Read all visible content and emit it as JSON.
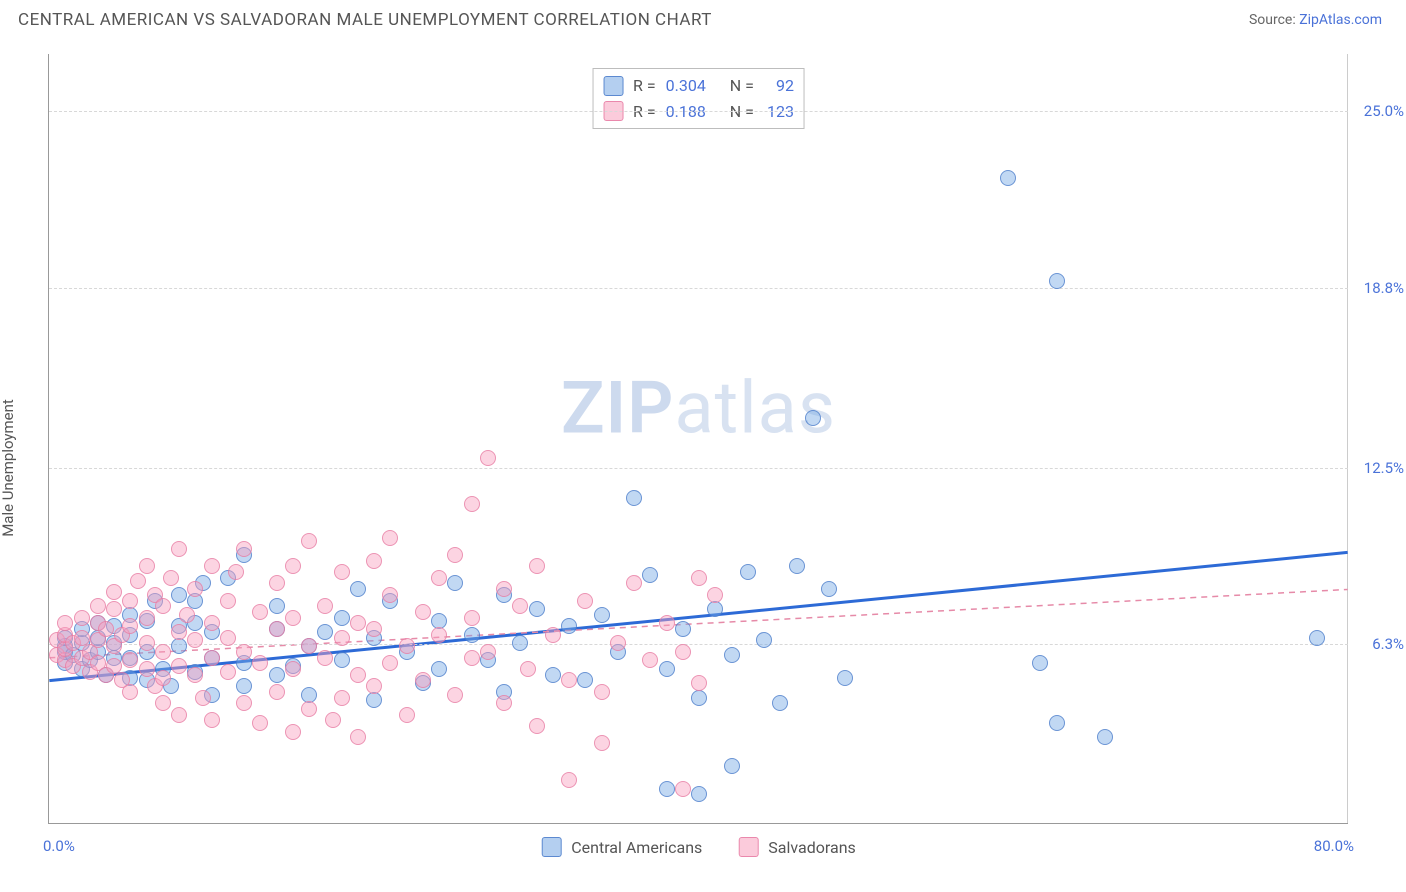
{
  "header": {
    "title": "CENTRAL AMERICAN VS SALVADORAN MALE UNEMPLOYMENT CORRELATION CHART",
    "source_prefix": "Source: ",
    "source_link": "ZipAtlas.com"
  },
  "chart": {
    "type": "scatter",
    "ylabel": "Male Unemployment",
    "watermark_left": "ZIP",
    "watermark_right": "atlas",
    "background_color": "#ffffff",
    "grid_color": "#d8d8d8",
    "axis_color": "#999999",
    "tick_label_color": "#4a72d8",
    "xlim": [
      0,
      80
    ],
    "ylim": [
      0,
      27
    ],
    "yticks": [
      {
        "v": 6.3,
        "label": "6.3%"
      },
      {
        "v": 12.5,
        "label": "12.5%"
      },
      {
        "v": 18.8,
        "label": "18.8%"
      },
      {
        "v": 25.0,
        "label": "25.0%"
      }
    ],
    "xticks": {
      "min_label": "0.0%",
      "max_label": "80.0%"
    },
    "series": [
      {
        "key": "central_americans",
        "label": "Central Americans",
        "color_fill": "rgba(118,168,228,0.45)",
        "color_stroke": "rgba(70,120,200,0.7)",
        "marker_size": 16,
        "trend": {
          "y_at_x0": 5.0,
          "y_at_xmax": 9.5,
          "dashed": false,
          "stroke": "#2d6ad6",
          "width": 3
        },
        "stats": {
          "R": "0.304",
          "N": "92"
        },
        "points": [
          [
            1,
            5.6
          ],
          [
            1,
            6.0
          ],
          [
            1,
            6.2
          ],
          [
            1,
            6.5
          ],
          [
            1.5,
            5.9
          ],
          [
            2,
            5.4
          ],
          [
            2,
            6.3
          ],
          [
            2,
            6.8
          ],
          [
            2.5,
            5.7
          ],
          [
            3,
            6.0
          ],
          [
            3,
            6.5
          ],
          [
            3,
            7.0
          ],
          [
            3.5,
            5.2
          ],
          [
            4,
            5.8
          ],
          [
            4,
            6.3
          ],
          [
            4,
            6.9
          ],
          [
            5,
            5.1
          ],
          [
            5,
            5.8
          ],
          [
            5,
            6.6
          ],
          [
            5,
            7.3
          ],
          [
            6,
            5.0
          ],
          [
            6,
            6.0
          ],
          [
            6,
            7.1
          ],
          [
            6.5,
            7.8
          ],
          [
            7,
            5.4
          ],
          [
            7.5,
            4.8
          ],
          [
            8,
            6.2
          ],
          [
            8,
            6.9
          ],
          [
            8,
            8.0
          ],
          [
            9,
            5.3
          ],
          [
            9,
            7.0
          ],
          [
            9,
            7.8
          ],
          [
            9.5,
            8.4
          ],
          [
            10,
            4.5
          ],
          [
            10,
            5.8
          ],
          [
            10,
            6.7
          ],
          [
            11,
            8.6
          ],
          [
            12,
            9.4
          ],
          [
            12,
            5.6
          ],
          [
            12,
            4.8
          ],
          [
            14,
            6.8
          ],
          [
            14,
            5.2
          ],
          [
            14,
            7.6
          ],
          [
            15,
            5.5
          ],
          [
            16,
            4.5
          ],
          [
            16,
            6.2
          ],
          [
            17,
            6.7
          ],
          [
            18,
            5.7
          ],
          [
            18,
            7.2
          ],
          [
            19,
            8.2
          ],
          [
            20,
            6.5
          ],
          [
            20,
            4.3
          ],
          [
            21,
            7.8
          ],
          [
            22,
            6.0
          ],
          [
            23,
            4.9
          ],
          [
            24,
            7.1
          ],
          [
            24,
            5.4
          ],
          [
            25,
            8.4
          ],
          [
            26,
            6.6
          ],
          [
            27,
            5.7
          ],
          [
            28,
            8.0
          ],
          [
            28,
            4.6
          ],
          [
            29,
            6.3
          ],
          [
            30,
            7.5
          ],
          [
            31,
            5.2
          ],
          [
            32,
            6.9
          ],
          [
            33,
            5.0
          ],
          [
            34,
            7.3
          ],
          [
            35,
            6.0
          ],
          [
            36,
            11.4
          ],
          [
            37,
            8.7
          ],
          [
            38,
            5.4
          ],
          [
            38,
            1.2
          ],
          [
            39,
            6.8
          ],
          [
            40,
            4.4
          ],
          [
            40,
            1.0
          ],
          [
            41,
            7.5
          ],
          [
            42,
            5.9
          ],
          [
            42,
            2.0
          ],
          [
            43,
            8.8
          ],
          [
            44,
            6.4
          ],
          [
            45,
            4.2
          ],
          [
            46,
            9.0
          ],
          [
            47,
            14.2
          ],
          [
            48,
            8.2
          ],
          [
            49,
            5.1
          ],
          [
            59,
            22.6
          ],
          [
            62,
            19.0
          ],
          [
            62,
            3.5
          ],
          [
            61,
            5.6
          ],
          [
            65,
            3.0
          ],
          [
            78,
            6.5
          ]
        ]
      },
      {
        "key": "salvadorans",
        "label": "Salvadorans",
        "color_fill": "rgba(248,160,190,0.45)",
        "color_stroke": "rgba(230,120,160,0.7)",
        "marker_size": 16,
        "trend": {
          "y_at_x0": 5.8,
          "y_at_xmax": 8.2,
          "dashed": true,
          "stroke": "#e68aa8",
          "width": 1.5
        },
        "stats": {
          "R": "0.188",
          "N": "123"
        },
        "points": [
          [
            0.5,
            5.9
          ],
          [
            0.5,
            6.4
          ],
          [
            1,
            5.7
          ],
          [
            1,
            6.1
          ],
          [
            1,
            6.6
          ],
          [
            1,
            7.0
          ],
          [
            1.5,
            5.5
          ],
          [
            1.5,
            6.3
          ],
          [
            2,
            5.8
          ],
          [
            2,
            6.5
          ],
          [
            2,
            7.2
          ],
          [
            2.5,
            5.3
          ],
          [
            2.5,
            6.0
          ],
          [
            3,
            5.6
          ],
          [
            3,
            6.4
          ],
          [
            3,
            7.0
          ],
          [
            3,
            7.6
          ],
          [
            3.5,
            5.2
          ],
          [
            3.5,
            6.8
          ],
          [
            4,
            5.5
          ],
          [
            4,
            6.2
          ],
          [
            4,
            7.5
          ],
          [
            4,
            8.1
          ],
          [
            4.5,
            5.0
          ],
          [
            4.5,
            6.6
          ],
          [
            5,
            5.7
          ],
          [
            5,
            6.9
          ],
          [
            5,
            7.8
          ],
          [
            5,
            4.6
          ],
          [
            5.5,
            8.5
          ],
          [
            6,
            5.4
          ],
          [
            6,
            6.3
          ],
          [
            6,
            7.2
          ],
          [
            6,
            9.0
          ],
          [
            6.5,
            4.8
          ],
          [
            6.5,
            8.0
          ],
          [
            7,
            5.1
          ],
          [
            7,
            6.0
          ],
          [
            7,
            7.6
          ],
          [
            7,
            4.2
          ],
          [
            7.5,
            8.6
          ],
          [
            8,
            5.5
          ],
          [
            8,
            6.7
          ],
          [
            8,
            3.8
          ],
          [
            8,
            9.6
          ],
          [
            8.5,
            7.3
          ],
          [
            9,
            5.2
          ],
          [
            9,
            6.4
          ],
          [
            9,
            8.2
          ],
          [
            9.5,
            4.4
          ],
          [
            10,
            5.8
          ],
          [
            10,
            7.0
          ],
          [
            10,
            3.6
          ],
          [
            10,
            9.0
          ],
          [
            11,
            5.3
          ],
          [
            11,
            6.5
          ],
          [
            11,
            7.8
          ],
          [
            11.5,
            8.8
          ],
          [
            12,
            4.2
          ],
          [
            12,
            6.0
          ],
          [
            12,
            9.6
          ],
          [
            13,
            5.6
          ],
          [
            13,
            7.4
          ],
          [
            13,
            3.5
          ],
          [
            14,
            6.8
          ],
          [
            14,
            4.6
          ],
          [
            14,
            8.4
          ],
          [
            15,
            5.4
          ],
          [
            15,
            7.2
          ],
          [
            15,
            9.0
          ],
          [
            15,
            3.2
          ],
          [
            16,
            6.2
          ],
          [
            16,
            4.0
          ],
          [
            16,
            9.9
          ],
          [
            17,
            5.8
          ],
          [
            17,
            7.6
          ],
          [
            17.5,
            3.6
          ],
          [
            18,
            6.5
          ],
          [
            18,
            8.8
          ],
          [
            18,
            4.4
          ],
          [
            19,
            5.2
          ],
          [
            19,
            7.0
          ],
          [
            19,
            3.0
          ],
          [
            20,
            6.8
          ],
          [
            20,
            9.2
          ],
          [
            20,
            4.8
          ],
          [
            21,
            5.6
          ],
          [
            21,
            8.0
          ],
          [
            21,
            10.0
          ],
          [
            22,
            6.2
          ],
          [
            22,
            3.8
          ],
          [
            23,
            7.4
          ],
          [
            23,
            5.0
          ],
          [
            24,
            8.6
          ],
          [
            24,
            6.6
          ],
          [
            25,
            4.5
          ],
          [
            25,
            9.4
          ],
          [
            26,
            5.8
          ],
          [
            26,
            7.2
          ],
          [
            26,
            11.2
          ],
          [
            27,
            12.8
          ],
          [
            27,
            6.0
          ],
          [
            28,
            4.2
          ],
          [
            28,
            8.2
          ],
          [
            29,
            7.6
          ],
          [
            29.5,
            5.4
          ],
          [
            30,
            3.4
          ],
          [
            30,
            9.0
          ],
          [
            31,
            6.6
          ],
          [
            32,
            5.0
          ],
          [
            32,
            1.5
          ],
          [
            33,
            7.8
          ],
          [
            34,
            4.6
          ],
          [
            34,
            2.8
          ],
          [
            35,
            6.3
          ],
          [
            36,
            8.4
          ],
          [
            37,
            5.7
          ],
          [
            38,
            7.0
          ],
          [
            39,
            6.0
          ],
          [
            39,
            1.2
          ],
          [
            40,
            4.9
          ],
          [
            41,
            8.0
          ],
          [
            40,
            8.6
          ]
        ]
      }
    ],
    "legend_top": {
      "r_label": "R =",
      "n_label": "N ="
    },
    "legend_bottom": [
      {
        "swatch": "blue",
        "label": "Central Americans"
      },
      {
        "swatch": "pink",
        "label": "Salvadorans"
      }
    ]
  }
}
